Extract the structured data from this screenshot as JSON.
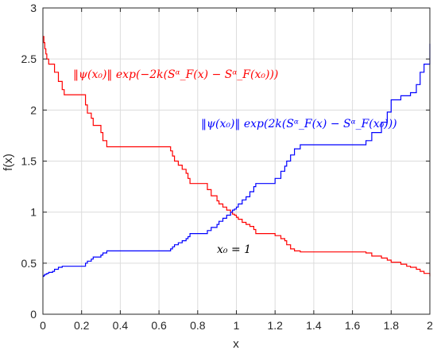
{
  "chart_data": {
    "type": "line",
    "title": "",
    "xlabel": "x",
    "ylabel": "f(x)",
    "xlim": [
      0,
      2
    ],
    "ylim": [
      0,
      3
    ],
    "xticks": [
      0,
      0.2,
      0.4,
      0.6,
      0.8,
      1,
      1.2,
      1.4,
      1.6,
      1.8,
      2
    ],
    "xtick_labels": [
      "0",
      "0.2",
      "0.4",
      "0.6",
      "0.8",
      "1",
      "1.2",
      "1.4",
      "1.6",
      "1.8",
      "2"
    ],
    "yticks": [
      0,
      0.5,
      1,
      1.5,
      2,
      2.5,
      3
    ],
    "ytick_labels": [
      "0",
      "0.5",
      "1",
      "1.5",
      "2",
      "2.5",
      "3"
    ],
    "grid": true,
    "colors": {
      "red": "#ff0000",
      "blue": "#0000ff",
      "grid": "#dcdcdc",
      "axis": "#262626"
    },
    "series": [
      {
        "color": "#ff0000",
        "x": [
          0,
          0.005,
          0.01,
          0.015,
          0.02,
          0.03,
          0.05,
          0.06,
          0.08,
          0.1,
          0.11,
          0.2,
          0.22,
          0.23,
          0.25,
          0.26,
          0.3,
          0.31,
          0.33,
          0.34,
          0.35,
          0.4,
          0.45,
          0.5,
          0.55,
          0.6,
          0.65,
          0.66,
          0.67,
          0.68,
          0.7,
          0.72,
          0.74,
          0.75,
          0.76,
          0.78,
          0.8,
          0.85,
          0.87,
          0.9,
          0.91,
          0.93,
          0.95,
          0.97,
          0.98,
          0.99,
          1.0,
          1.01,
          1.03,
          1.05,
          1.07,
          1.09,
          1.1,
          1.12,
          1.15,
          1.2,
          1.23,
          1.25,
          1.26,
          1.28,
          1.3,
          1.33,
          1.35,
          1.4,
          1.5,
          1.6,
          1.66,
          1.67,
          1.7,
          1.75,
          1.78,
          1.8,
          1.85,
          1.88,
          1.9,
          1.93,
          1.95,
          1.97,
          2.0
        ],
        "y": [
          2.72,
          2.66,
          2.6,
          2.55,
          2.5,
          2.45,
          2.45,
          2.37,
          2.28,
          2.2,
          2.15,
          2.15,
          2.05,
          1.97,
          1.92,
          1.85,
          1.78,
          1.7,
          1.64,
          1.64,
          1.64,
          1.64,
          1.64,
          1.64,
          1.64,
          1.64,
          1.64,
          1.6,
          1.55,
          1.5,
          1.46,
          1.42,
          1.38,
          1.33,
          1.28,
          1.28,
          1.28,
          1.22,
          1.16,
          1.11,
          1.08,
          1.05,
          1.02,
          1.0,
          0.98,
          0.97,
          0.95,
          0.93,
          0.9,
          0.88,
          0.86,
          0.83,
          0.79,
          0.79,
          0.79,
          0.77,
          0.74,
          0.72,
          0.68,
          0.64,
          0.62,
          0.61,
          0.61,
          0.61,
          0.61,
          0.61,
          0.61,
          0.6,
          0.57,
          0.55,
          0.53,
          0.51,
          0.49,
          0.47,
          0.46,
          0.44,
          0.42,
          0.4,
          0.37
        ]
      },
      {
        "color": "#0000ff",
        "x": [
          0,
          0.005,
          0.01,
          0.015,
          0.02,
          0.03,
          0.05,
          0.06,
          0.08,
          0.1,
          0.11,
          0.2,
          0.22,
          0.23,
          0.25,
          0.26,
          0.3,
          0.31,
          0.33,
          0.34,
          0.35,
          0.4,
          0.45,
          0.5,
          0.55,
          0.6,
          0.65,
          0.66,
          0.67,
          0.68,
          0.7,
          0.72,
          0.74,
          0.75,
          0.76,
          0.78,
          0.8,
          0.85,
          0.87,
          0.9,
          0.91,
          0.93,
          0.95,
          0.97,
          0.98,
          0.99,
          1.0,
          1.01,
          1.03,
          1.05,
          1.07,
          1.09,
          1.1,
          1.12,
          1.15,
          1.2,
          1.23,
          1.25,
          1.26,
          1.28,
          1.3,
          1.33,
          1.35,
          1.4,
          1.5,
          1.6,
          1.66,
          1.67,
          1.7,
          1.75,
          1.78,
          1.8,
          1.85,
          1.88,
          1.9,
          1.93,
          1.95,
          1.97,
          2.0
        ],
        "y": [
          0.37,
          0.38,
          0.39,
          0.39,
          0.4,
          0.41,
          0.42,
          0.44,
          0.46,
          0.47,
          0.47,
          0.47,
          0.5,
          0.52,
          0.54,
          0.56,
          0.58,
          0.6,
          0.62,
          0.62,
          0.62,
          0.62,
          0.62,
          0.62,
          0.62,
          0.62,
          0.62,
          0.64,
          0.66,
          0.68,
          0.7,
          0.72,
          0.74,
          0.76,
          0.79,
          0.79,
          0.79,
          0.82,
          0.85,
          0.88,
          0.91,
          0.94,
          0.97,
          1.0,
          1.02,
          1.03,
          1.05,
          1.08,
          1.12,
          1.15,
          1.2,
          1.25,
          1.28,
          1.28,
          1.28,
          1.33,
          1.4,
          1.45,
          1.5,
          1.56,
          1.62,
          1.66,
          1.66,
          1.66,
          1.66,
          1.66,
          1.66,
          1.7,
          1.78,
          1.88,
          1.98,
          2.1,
          2.14,
          2.14,
          2.17,
          2.25,
          2.37,
          2.45,
          2.65
        ]
      }
    ],
    "annotations": [
      {
        "color": "#ff0000",
        "text": "‖ψ(x₀)‖ exp(−2k(Sᵅ_F(x) − Sᵅ_F(x₀)))"
      },
      {
        "color": "#0000ff",
        "text": "‖ψ(x₀)‖ exp(2k(Sᵅ_F(x) − Sᵅ_F(x₀)))"
      },
      {
        "color": "#000000",
        "text": "x₀ = 1"
      }
    ]
  }
}
